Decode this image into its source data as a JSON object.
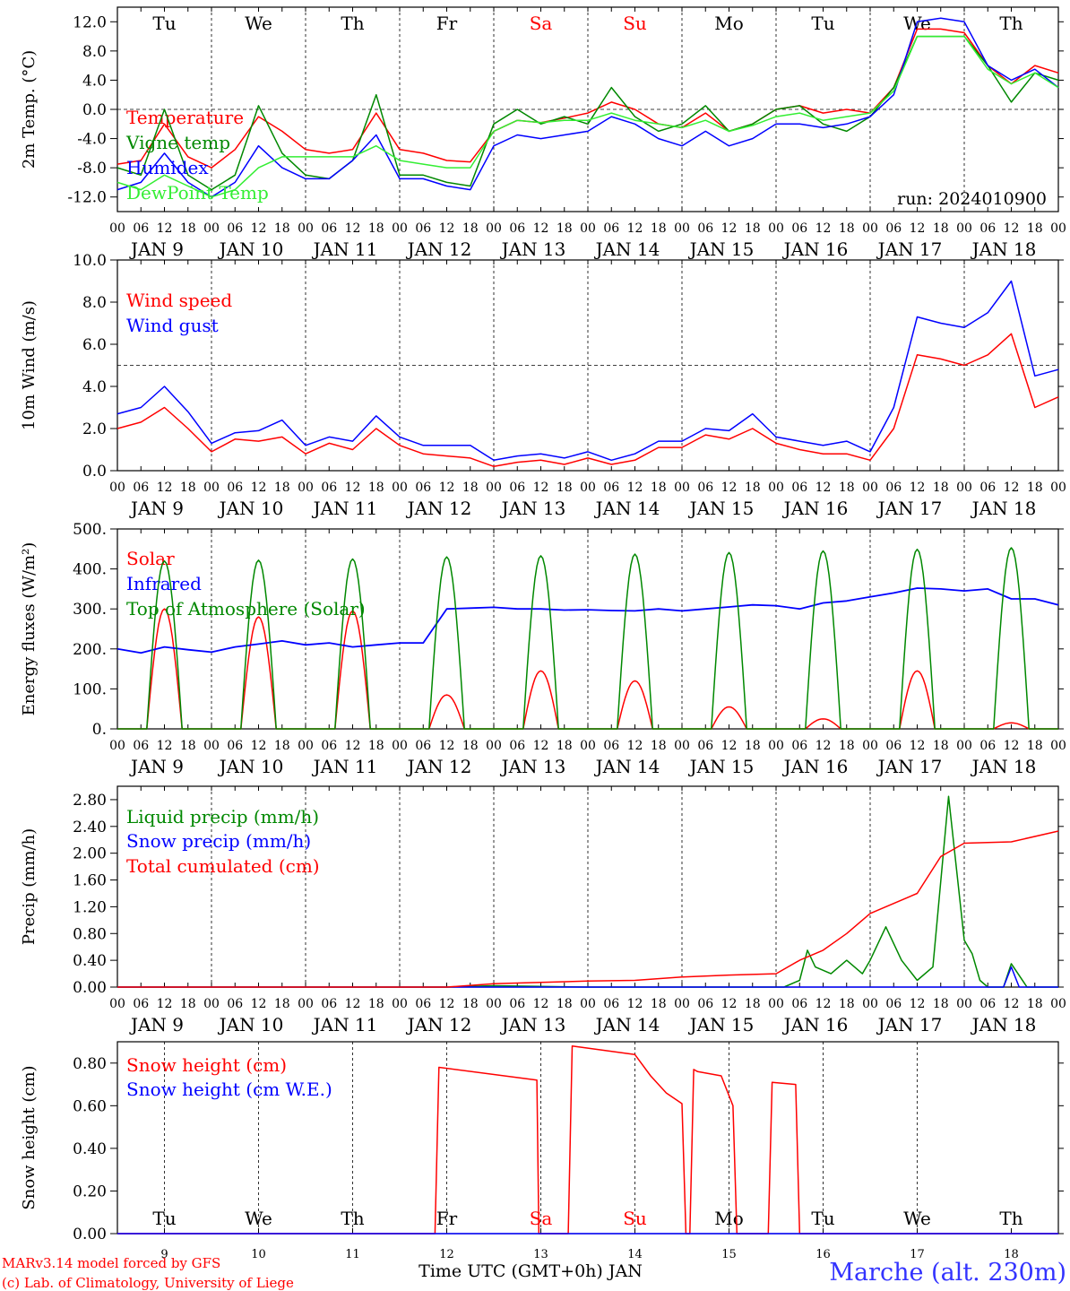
{
  "days": {
    "weekday_labels": [
      "Tu",
      "We",
      "Th",
      "Fr",
      "Sa",
      "Su",
      "Mo",
      "Tu",
      "We",
      "Th"
    ],
    "weekday_colors": [
      "#000000",
      "#000000",
      "#000000",
      "#000000",
      "#ff0000",
      "#ff0000",
      "#000000",
      "#000000",
      "#000000",
      "#000000"
    ],
    "date_labels": [
      "JAN  9",
      "JAN 10",
      "JAN 11",
      "JAN 12",
      "JAN 13",
      "JAN 14",
      "JAN 15",
      "JAN 16",
      "JAN 17",
      "JAN 18"
    ],
    "hour_ticks": [
      "00",
      "06",
      "12",
      "18"
    ],
    "bottom_day_numbers": [
      "9",
      "10",
      "11",
      "12",
      "13",
      "14",
      "15",
      "16",
      "17",
      "18"
    ]
  },
  "footer": {
    "xlabel": "Time UTC (GMT+0h) JAN",
    "credit_line1": "MARv3.14 model forced by GFS",
    "credit_line2": "(c) Lab. of Climatology, University of Liege",
    "station": "Marche (alt. 230m)"
  },
  "colors": {
    "red": "#ff0000",
    "green": "#008800",
    "blue": "#0000ff",
    "lightgreen": "#33ee33",
    "station": "#3333ff"
  },
  "chart_data": [
    {
      "type": "line",
      "ylabel": "2m Temp. (°C)",
      "ylim": [
        -14,
        14
      ],
      "yticks": [
        12,
        8,
        4,
        0,
        -4,
        -8,
        -12
      ],
      "ytick_labels": [
        "12.0",
        "8.0",
        "4.0",
        "0.0",
        "-4.0",
        "-8.0",
        "-12.0"
      ],
      "reference_line": 0,
      "annotation": "run: 2024010900",
      "x_unit": "hours since JAN 9 00 UTC",
      "series": [
        {
          "name": "Temperature",
          "color": "#ff0000",
          "x": [
            0,
            6,
            12,
            18,
            24,
            30,
            36,
            42,
            48,
            54,
            60,
            66,
            72,
            78,
            84,
            90,
            96,
            102,
            108,
            114,
            120,
            126,
            132,
            138,
            144,
            150,
            156,
            162,
            168,
            174,
            180,
            186,
            192,
            198,
            204,
            210,
            216,
            222,
            228,
            234,
            240
          ],
          "y": [
            -7.5,
            -7,
            -2,
            -6.5,
            -8,
            -5.5,
            -1,
            -3,
            -5.5,
            -6,
            -5.5,
            -0.5,
            -5.5,
            -6,
            -7,
            -7.2,
            -3,
            -1.5,
            -1.8,
            -1.2,
            -0.5,
            1,
            0,
            -2,
            -2.5,
            -0.5,
            -3,
            -2,
            0,
            0.5,
            -0.5,
            0,
            -0.5,
            3,
            11,
            11,
            10.5,
            6,
            3.5,
            6,
            5
          ]
        },
        {
          "name": "Vigne temp",
          "color": "#008800",
          "x": [
            0,
            6,
            12,
            18,
            24,
            30,
            36,
            42,
            48,
            54,
            60,
            66,
            72,
            78,
            84,
            90,
            96,
            102,
            108,
            114,
            120,
            126,
            132,
            138,
            144,
            150,
            156,
            162,
            168,
            174,
            180,
            186,
            192,
            198,
            204,
            210,
            216,
            222,
            228,
            234,
            240
          ],
          "y": [
            -8,
            -9,
            0,
            -9,
            -11,
            -9,
            0.5,
            -6,
            -9,
            -9.5,
            -7,
            2,
            -9,
            -9,
            -10,
            -10.5,
            -2,
            0,
            -2,
            -1,
            -2,
            3,
            -1,
            -3,
            -2,
            0.5,
            -3,
            -2,
            0,
            0.5,
            -2,
            -3,
            -1,
            3,
            10,
            10,
            10,
            6,
            1,
            5,
            4
          ]
        },
        {
          "name": "Humidex",
          "color": "#0000ff",
          "x": [
            0,
            6,
            12,
            18,
            24,
            30,
            36,
            42,
            48,
            54,
            60,
            66,
            72,
            78,
            84,
            90,
            96,
            102,
            108,
            114,
            120,
            126,
            132,
            138,
            144,
            150,
            156,
            162,
            168,
            174,
            180,
            186,
            192,
            198,
            204,
            210,
            216,
            222,
            228,
            234,
            240
          ],
          "y": [
            -11,
            -10,
            -6,
            -10,
            -12,
            -10,
            -5,
            -8,
            -9.5,
            -9.5,
            -7,
            -3.5,
            -9.5,
            -9.5,
            -10.5,
            -11,
            -5,
            -3.5,
            -4,
            -3.5,
            -3,
            -1,
            -2,
            -4,
            -5,
            -3,
            -5,
            -4,
            -2,
            -2,
            -2.5,
            -2,
            -1,
            2,
            12,
            12.5,
            12,
            6,
            4,
            5.5,
            3
          ]
        },
        {
          "name": "DewPoint Temp",
          "color": "#33ee33",
          "x": [
            0,
            6,
            12,
            18,
            24,
            30,
            36,
            42,
            48,
            54,
            60,
            66,
            72,
            78,
            84,
            90,
            96,
            102,
            108,
            114,
            120,
            126,
            132,
            138,
            144,
            150,
            156,
            162,
            168,
            174,
            180,
            186,
            192,
            198,
            204,
            210,
            216,
            222,
            228,
            234,
            240
          ],
          "y": [
            -10,
            -11,
            -9,
            -10.5,
            -12,
            -11,
            -8,
            -6.5,
            -6.5,
            -6.5,
            -6.5,
            -5,
            -7,
            -7.5,
            -8,
            -8,
            -3,
            -1.5,
            -1.8,
            -1.5,
            -1.5,
            -0.5,
            -1.5,
            -2,
            -2.5,
            -1.5,
            -3,
            -2.2,
            -1,
            -0.5,
            -1.5,
            -1,
            -0.5,
            2.5,
            10,
            10,
            10,
            5.5,
            3.5,
            5,
            3
          ]
        }
      ]
    },
    {
      "type": "line",
      "ylabel": "10m Wind (m/s)",
      "ylim": [
        0,
        10
      ],
      "yticks": [
        0,
        2,
        4,
        6,
        8,
        10
      ],
      "ytick_labels": [
        "0.0",
        "2.0",
        "4.0",
        "6.0",
        "8.0",
        "10.0"
      ],
      "reference_line": 5,
      "series": [
        {
          "name": "Wind speed",
          "color": "#ff0000",
          "x": [
            0,
            6,
            12,
            18,
            24,
            30,
            36,
            42,
            48,
            54,
            60,
            66,
            72,
            78,
            84,
            90,
            96,
            102,
            108,
            114,
            120,
            126,
            132,
            138,
            144,
            150,
            156,
            162,
            168,
            174,
            180,
            186,
            192,
            198,
            204,
            210,
            216,
            222,
            228,
            234,
            240
          ],
          "y": [
            2,
            2.3,
            3,
            2,
            0.9,
            1.5,
            1.4,
            1.6,
            0.8,
            1.3,
            1,
            2,
            1.2,
            0.8,
            0.7,
            0.6,
            0.2,
            0.4,
            0.5,
            0.3,
            0.6,
            0.3,
            0.5,
            1.1,
            1.1,
            1.7,
            1.5,
            2,
            1.3,
            1,
            0.8,
            0.8,
            0.5,
            2,
            5.5,
            5.3,
            5,
            5.5,
            6.5,
            3,
            3.5
          ]
        },
        {
          "name": "Wind gust",
          "color": "#0000ff",
          "x": [
            0,
            6,
            12,
            18,
            24,
            30,
            36,
            42,
            48,
            54,
            60,
            66,
            72,
            78,
            84,
            90,
            96,
            102,
            108,
            114,
            120,
            126,
            132,
            138,
            144,
            150,
            156,
            162,
            168,
            174,
            180,
            186,
            192,
            198,
            204,
            210,
            216,
            222,
            228,
            234,
            240
          ],
          "y": [
            2.7,
            3,
            4,
            2.8,
            1.3,
            1.8,
            1.9,
            2.4,
            1.2,
            1.6,
            1.4,
            2.6,
            1.6,
            1.2,
            1.2,
            1.2,
            0.5,
            0.7,
            0.8,
            0.6,
            0.9,
            0.5,
            0.8,
            1.4,
            1.4,
            2,
            1.9,
            2.7,
            1.6,
            1.4,
            1.2,
            1.4,
            0.9,
            3,
            7.3,
            7,
            6.8,
            7.5,
            9,
            4.5,
            4.8
          ]
        }
      ]
    },
    {
      "type": "line",
      "ylabel": "Energy fluxes (W/m²)",
      "ylim": [
        0,
        500
      ],
      "yticks": [
        0,
        100,
        200,
        300,
        400,
        500
      ],
      "ytick_labels": [
        "0.",
        "100.",
        "200.",
        "300.",
        "400.",
        "500."
      ],
      "series": [
        {
          "name": "Solar",
          "color": "#ff0000",
          "peak_hours": [
            12,
            36,
            60,
            84,
            108,
            132,
            156,
            180,
            204,
            228
          ],
          "peak_values": [
            300,
            280,
            295,
            85,
            145,
            120,
            55,
            25,
            145,
            15
          ],
          "half_width_hours": 4.5
        },
        {
          "name": "Infrared",
          "color": "#0000ff",
          "x": [
            0,
            6,
            12,
            18,
            24,
            30,
            36,
            42,
            48,
            54,
            60,
            66,
            72,
            78,
            84,
            90,
            96,
            102,
            108,
            114,
            120,
            126,
            132,
            138,
            144,
            150,
            156,
            162,
            168,
            174,
            180,
            186,
            192,
            198,
            204,
            210,
            216,
            222,
            228,
            234,
            240
          ],
          "y": [
            200,
            190,
            205,
            198,
            192,
            205,
            212,
            220,
            210,
            215,
            205,
            210,
            215,
            215,
            300,
            302,
            304,
            300,
            300,
            297,
            298,
            296,
            295,
            300,
            295,
            300,
            305,
            310,
            308,
            300,
            315,
            320,
            330,
            340,
            352,
            350,
            345,
            350,
            325,
            325,
            310
          ]
        },
        {
          "name": "Top of Atmosphere (Solar)",
          "color": "#008800",
          "peak_hours": [
            12,
            36,
            60,
            84,
            108,
            132,
            156,
            180,
            204,
            228
          ],
          "peak_values": [
            420,
            422,
            425,
            430,
            433,
            437,
            441,
            445,
            449,
            453
          ],
          "half_width_hours": 4.5
        }
      ]
    },
    {
      "type": "line",
      "ylabel": "Precip (mm/h)",
      "ylim": [
        0,
        3.0
      ],
      "yticks": [
        0,
        0.4,
        0.8,
        1.2,
        1.6,
        2.0,
        2.4,
        2.8
      ],
      "ytick_labels": [
        "0.00",
        "0.40",
        "0.80",
        "1.20",
        "1.60",
        "2.00",
        "2.40",
        "2.80"
      ],
      "series": [
        {
          "name": "Liquid precip (mm/h)",
          "color": "#008800",
          "x": [
            0,
            84,
            96,
            108,
            120,
            156,
            170,
            174,
            176,
            178,
            182,
            186,
            190,
            192,
            196,
            200,
            204,
            208,
            212,
            216,
            218,
            220,
            222,
            226,
            228,
            232,
            240
          ],
          "y": [
            0,
            0,
            0.02,
            0.01,
            0,
            0,
            0,
            0.1,
            0.55,
            0.3,
            0.2,
            0.4,
            0.2,
            0.4,
            0.9,
            0.4,
            0.1,
            0.3,
            2.85,
            0.7,
            0.5,
            0.1,
            0,
            0,
            0.35,
            0,
            0
          ]
        },
        {
          "name": "Snow precip (mm/h)",
          "color": "#0000ff",
          "x": [
            0,
            226,
            228,
            230,
            232,
            240
          ],
          "y": [
            0,
            0,
            0.3,
            0,
            0,
            0
          ]
        },
        {
          "name": "Total cumulated (cm)",
          "color": "#ff0000",
          "x": [
            0,
            84,
            96,
            108,
            120,
            132,
            144,
            156,
            168,
            174,
            180,
            186,
            192,
            198,
            204,
            210,
            216,
            228,
            240
          ],
          "y": [
            0,
            0,
            0.05,
            0.07,
            0.09,
            0.1,
            0.15,
            0.18,
            0.2,
            0.4,
            0.55,
            0.8,
            1.1,
            1.25,
            1.4,
            1.95,
            2.15,
            2.17,
            2.33
          ]
        }
      ]
    },
    {
      "type": "line",
      "ylabel": "Snow height (cm)",
      "ylim": [
        0,
        0.9
      ],
      "yticks": [
        0,
        0.2,
        0.4,
        0.6,
        0.8
      ],
      "ytick_labels": [
        "0.00",
        "0.20",
        "0.40",
        "0.60",
        "0.80"
      ],
      "series": [
        {
          "name": "Snow height (cm)",
          "color": "#ff0000",
          "x": [
            0,
            81,
            82,
            107,
            107.5,
            115,
            116,
            132,
            136,
            140,
            144,
            145,
            146,
            147,
            148,
            154,
            157,
            158,
            164,
            166,
            167,
            173,
            174,
            240
          ],
          "y": [
            0,
            0,
            0.78,
            0.72,
            0,
            0,
            0.88,
            0.84,
            0.74,
            0.66,
            0.61,
            0,
            0,
            0.77,
            0.76,
            0.74,
            0.6,
            0,
            0,
            0,
            0.71,
            0.7,
            0,
            0
          ]
        },
        {
          "name": "Snow height (cm W.E.)",
          "color": "#0000ff",
          "x": [
            0,
            240
          ],
          "y": [
            0,
            0
          ]
        }
      ]
    }
  ]
}
